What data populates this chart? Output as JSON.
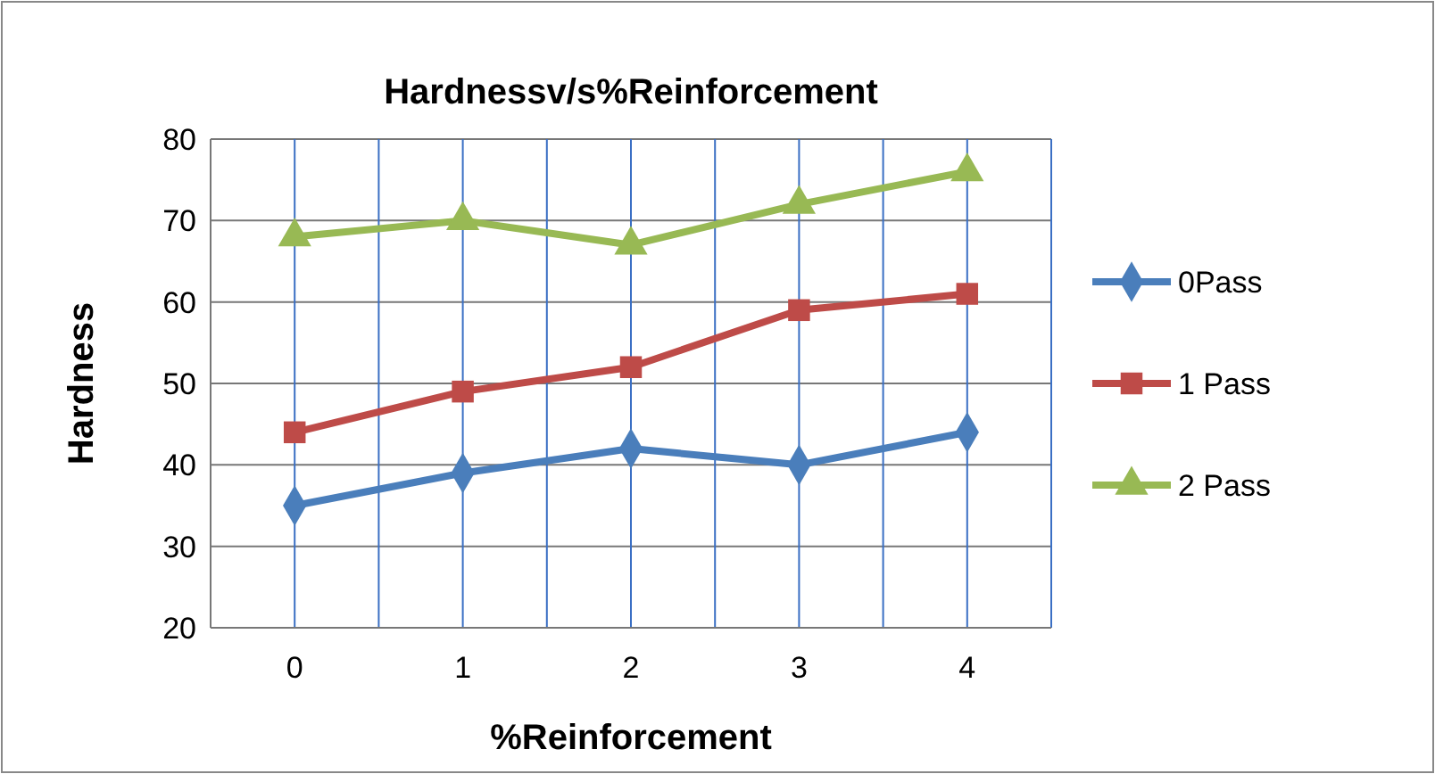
{
  "chart_data": {
    "type": "line",
    "title": "Hardnessv/s%Reinforcement",
    "xlabel": "%Reinforcement",
    "ylabel": "Hardness",
    "categories": [
      "0",
      "1",
      "2",
      "3",
      "4"
    ],
    "series": [
      {
        "name": "0Pass",
        "color": "#4a7ebb",
        "values": [
          35,
          39,
          42,
          40,
          44
        ],
        "marker": "diamond"
      },
      {
        "name": "1 Pass",
        "color": "#be4b48",
        "values": [
          44,
          49,
          52,
          59,
          61
        ],
        "marker": "square"
      },
      {
        "name": "2 Pass",
        "color": "#98b954",
        "values": [
          68,
          70,
          67,
          72,
          76
        ],
        "marker": "triangle"
      }
    ],
    "ylim": [
      20,
      80
    ],
    "yticks": [
      20,
      30,
      40,
      50,
      60,
      70,
      80
    ],
    "grid": true,
    "legend": "right"
  }
}
